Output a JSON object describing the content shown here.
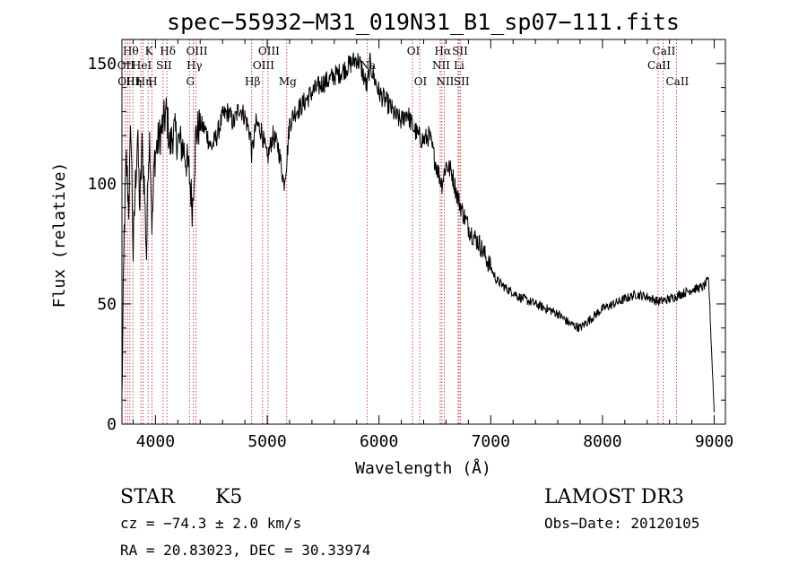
{
  "chart_data": {
    "type": "line",
    "title": "spec−55932−M31_019N31_B1_sp07−111.fits",
    "xlabel": "Wavelength (Å)",
    "ylabel": "Flux (relative)",
    "xlim": [
      3700,
      9100
    ],
    "ylim": [
      0,
      160
    ],
    "xticks": [
      4000,
      5000,
      6000,
      7000,
      8000,
      9000
    ],
    "xtick_labels": [
      "4000",
      "5000",
      "6000",
      "7000",
      "8000",
      "9000"
    ],
    "yticks": [
      0,
      50,
      100,
      150
    ],
    "ytick_labels": [
      "0",
      "50",
      "100",
      "150"
    ],
    "colors": {
      "spectrum": "#000000",
      "lines": "#b22222"
    },
    "spectrum_anchors": {
      "wavelength": [
        3700,
        3720,
        3740,
        3760,
        3780,
        3800,
        3820,
        3840,
        3860,
        3880,
        3900,
        3920,
        3935,
        3950,
        3970,
        3990,
        4010,
        4040,
        4070,
        4100,
        4130,
        4160,
        4200,
        4250,
        4300,
        4330,
        4360,
        4400,
        4450,
        4500,
        4550,
        4600,
        4650,
        4700,
        4750,
        4800,
        4850,
        4861,
        4900,
        4950,
        5000,
        5050,
        5100,
        5150,
        5175,
        5200,
        5250,
        5300,
        5350,
        5400,
        5450,
        5500,
        5550,
        5600,
        5650,
        5700,
        5750,
        5800,
        5830,
        5860,
        5893,
        5920,
        5950,
        6000,
        6050,
        6100,
        6150,
        6200,
        6250,
        6300,
        6350,
        6400,
        6450,
        6500,
        6530,
        6563,
        6600,
        6650,
        6700,
        6750,
        6800,
        6850,
        6900,
        6950,
        7000,
        7050,
        7100,
        7150,
        7200,
        7250,
        7300,
        7400,
        7500,
        7600,
        7700,
        7800,
        7900,
        8000,
        8100,
        8200,
        8300,
        8400,
        8500,
        8600,
        8700,
        8800,
        8900,
        8950,
        9000
      ],
      "flux": [
        10,
        80,
        110,
        90,
        125,
        70,
        100,
        120,
        90,
        115,
        100,
        70,
        110,
        120,
        80,
        110,
        115,
        120,
        125,
        130,
        115,
        122,
        118,
        115,
        105,
        90,
        120,
        125,
        122,
        115,
        120,
        128,
        130,
        125,
        132,
        128,
        120,
        112,
        125,
        122,
        110,
        120,
        115,
        100,
        110,
        125,
        130,
        132,
        135,
        138,
        140,
        142,
        143,
        145,
        146,
        148,
        150,
        152,
        150,
        145,
        140,
        150,
        145,
        138,
        135,
        132,
        128,
        126,
        130,
        124,
        120,
        118,
        120,
        110,
        105,
        100,
        108,
        105,
        95,
        88,
        82,
        78,
        75,
        70,
        65,
        60,
        58,
        56,
        55,
        53,
        52,
        50,
        48,
        46,
        42,
        40,
        44,
        48,
        50,
        52,
        54,
        53,
        51,
        52,
        54,
        56,
        57,
        60,
        5
      ]
    },
    "emission_lines": [
      {
        "wavelength": 3727,
        "label": "OII",
        "row": 1
      },
      {
        "wavelength": 3750,
        "label": "OIII",
        "row": 2
      },
      {
        "wavelength": 3771,
        "label": "Hθ",
        "row": 0
      },
      {
        "wavelength": 3798,
        "label": "Hη",
        "row": 2
      },
      {
        "wavelength": 3869,
        "label": "HeI",
        "row": 1
      },
      {
        "wavelength": 3889,
        "label": "Hη",
        "row": 2
      },
      {
        "wavelength": 3934,
        "label": "K",
        "row": 0
      },
      {
        "wavelength": 3968,
        "label": "H",
        "row": 2
      },
      {
        "wavelength": 4068,
        "label": "SII",
        "row": 1
      },
      {
        "wavelength": 4102,
        "label": "Hδ",
        "row": 0
      },
      {
        "wavelength": 4304,
        "label": "G",
        "row": 2
      },
      {
        "wavelength": 4340,
        "label": "Hγ",
        "row": 1
      },
      {
        "wavelength": 4363,
        "label": "OIII",
        "row": 0
      },
      {
        "wavelength": 4861,
        "label": "Hβ",
        "row": 2
      },
      {
        "wavelength": 4959,
        "label": "OIII",
        "row": 1
      },
      {
        "wavelength": 5007,
        "label": "OIII",
        "row": 0
      },
      {
        "wavelength": 5175,
        "label": "Mg",
        "row": 2
      },
      {
        "wavelength": 5893,
        "label": "Na",
        "row": 1
      },
      {
        "wavelength": 6300,
        "label": "OI",
        "row": 0
      },
      {
        "wavelength": 6364,
        "label": "OI",
        "row": 2
      },
      {
        "wavelength": 6548,
        "label": "NII",
        "row": 1
      },
      {
        "wavelength": 6563,
        "label": "Hα",
        "row": 0
      },
      {
        "wavelength": 6584,
        "label": "NII",
        "row": 2
      },
      {
        "wavelength": 6708,
        "label": "Li",
        "row": 1
      },
      {
        "wavelength": 6717,
        "label": "SII",
        "row": 0
      },
      {
        "wavelength": 6731,
        "label": "SII",
        "row": 2
      },
      {
        "wavelength": 8498,
        "label": "CaII",
        "row": 1
      },
      {
        "wavelength": 8542,
        "label": "CaII",
        "row": 0
      },
      {
        "wavelength": 8662,
        "label": "CaII",
        "row": 2
      }
    ]
  },
  "info": {
    "class": "STAR",
    "subclass": "K5",
    "survey": "LAMOST DR3",
    "cz": "cz = −74.3 ± 2.0 km/s",
    "obs_date": "Obs−Date: 20120105",
    "radec": "RA =  20.83023, DEC =  30.33974"
  }
}
